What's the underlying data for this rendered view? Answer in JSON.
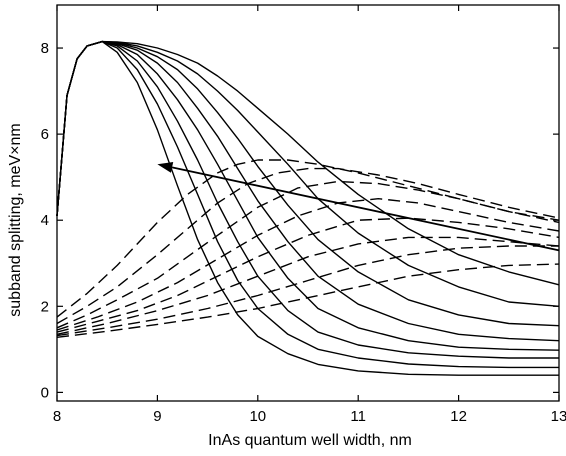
{
  "chart_data": {
    "type": "line",
    "title": "",
    "xlabel": "InAs quantum well width, nm",
    "ylabel": "subband splitting, meV×nm",
    "xlim": [
      8,
      13
    ],
    "ylim": [
      -0.2,
      9
    ],
    "xticks": [
      8,
      9,
      10,
      11,
      12,
      13
    ],
    "yticks": [
      0,
      2,
      4,
      6,
      8
    ],
    "xtick_labels": [
      "8",
      "9",
      "10",
      "11",
      "12",
      "13"
    ],
    "ytick_labels": [
      "0",
      "2",
      "4",
      "6",
      "8"
    ],
    "grid": false,
    "legend": "none",
    "series": [
      {
        "style": "solid",
        "x": [
          8.0,
          8.1,
          8.2,
          8.3,
          8.45,
          8.6,
          8.8,
          9.0,
          9.2,
          9.4,
          9.6,
          9.8,
          10.0,
          10.3,
          10.6,
          11.0,
          11.5,
          12.0,
          12.5,
          13.0
        ],
        "y": [
          4.1,
          6.9,
          7.75,
          8.05,
          8.15,
          7.9,
          7.2,
          6.1,
          4.8,
          3.55,
          2.55,
          1.8,
          1.3,
          0.9,
          0.65,
          0.5,
          0.42,
          0.4,
          0.4,
          0.4
        ]
      },
      {
        "style": "solid",
        "x": [
          8.0,
          8.1,
          8.2,
          8.3,
          8.45,
          8.6,
          8.8,
          9.0,
          9.2,
          9.4,
          9.6,
          9.8,
          10.0,
          10.3,
          10.6,
          11.0,
          11.5,
          12.0,
          12.5,
          13.0
        ],
        "y": [
          4.1,
          6.9,
          7.75,
          8.05,
          8.15,
          8.0,
          7.5,
          6.7,
          5.7,
          4.6,
          3.5,
          2.6,
          1.95,
          1.35,
          1.0,
          0.8,
          0.66,
          0.6,
          0.58,
          0.58
        ]
      },
      {
        "style": "solid",
        "x": [
          8.0,
          8.1,
          8.2,
          8.3,
          8.45,
          8.6,
          8.8,
          9.0,
          9.2,
          9.4,
          9.6,
          9.8,
          10.0,
          10.3,
          10.6,
          11.0,
          11.5,
          12.0,
          12.5,
          13.0
        ],
        "y": [
          4.1,
          6.9,
          7.75,
          8.05,
          8.15,
          8.05,
          7.7,
          7.1,
          6.3,
          5.4,
          4.4,
          3.5,
          2.7,
          1.9,
          1.4,
          1.1,
          0.92,
          0.84,
          0.8,
          0.8
        ]
      },
      {
        "style": "solid",
        "x": [
          8.0,
          8.1,
          8.2,
          8.3,
          8.45,
          8.6,
          8.8,
          9.0,
          9.2,
          9.4,
          9.6,
          9.8,
          10.0,
          10.3,
          10.6,
          11.0,
          11.5,
          12.0,
          12.5,
          13.0
        ],
        "y": [
          4.1,
          6.9,
          7.75,
          8.05,
          8.15,
          8.08,
          7.85,
          7.4,
          6.8,
          6.1,
          5.3,
          4.45,
          3.6,
          2.65,
          1.95,
          1.5,
          1.2,
          1.05,
          1.0,
          0.98
        ]
      },
      {
        "style": "solid",
        "x": [
          8.0,
          8.1,
          8.2,
          8.3,
          8.45,
          8.6,
          8.8,
          9.0,
          9.2,
          9.4,
          9.6,
          9.8,
          10.0,
          10.3,
          10.6,
          11.0,
          11.5,
          12.0,
          12.5,
          13.0
        ],
        "y": [
          4.1,
          6.9,
          7.75,
          8.05,
          8.15,
          8.1,
          7.95,
          7.65,
          7.2,
          6.6,
          5.95,
          5.2,
          4.45,
          3.5,
          2.7,
          2.05,
          1.6,
          1.35,
          1.25,
          1.2
        ]
      },
      {
        "style": "solid",
        "x": [
          8.0,
          8.1,
          8.2,
          8.3,
          8.45,
          8.6,
          8.8,
          9.0,
          9.2,
          9.4,
          9.6,
          9.8,
          10.0,
          10.3,
          10.6,
          11.0,
          11.5,
          12.0,
          12.5,
          13.0
        ],
        "y": [
          4.1,
          6.9,
          7.75,
          8.05,
          8.15,
          8.12,
          8.0,
          7.8,
          7.5,
          7.05,
          6.5,
          5.9,
          5.25,
          4.35,
          3.55,
          2.8,
          2.15,
          1.8,
          1.6,
          1.55
        ]
      },
      {
        "style": "solid",
        "x": [
          8.0,
          8.1,
          8.2,
          8.3,
          8.45,
          8.6,
          8.8,
          9.0,
          9.2,
          9.4,
          9.6,
          9.8,
          10.0,
          10.3,
          10.6,
          11.0,
          11.5,
          12.0,
          12.5,
          13.0
        ],
        "y": [
          4.1,
          6.9,
          7.75,
          8.05,
          8.15,
          8.13,
          8.05,
          7.9,
          7.7,
          7.4,
          7.0,
          6.55,
          6.05,
          5.3,
          4.5,
          3.7,
          2.95,
          2.45,
          2.1,
          2.0
        ]
      },
      {
        "style": "solid",
        "x": [
          8.0,
          8.1,
          8.2,
          8.3,
          8.45,
          8.6,
          8.8,
          9.0,
          9.2,
          9.4,
          9.6,
          9.8,
          10.0,
          10.3,
          10.6,
          11.0,
          11.5,
          12.0,
          12.5,
          13.0
        ],
        "y": [
          4.1,
          6.9,
          7.75,
          8.05,
          8.15,
          8.14,
          8.1,
          8.0,
          7.85,
          7.65,
          7.35,
          7.0,
          6.6,
          6.0,
          5.35,
          4.6,
          3.8,
          3.2,
          2.8,
          2.5
        ]
      },
      {
        "style": "dashed",
        "x": [
          8.0,
          8.3,
          8.6,
          9.0,
          9.3,
          9.6,
          9.8,
          10.0,
          10.3,
          10.6,
          11.0,
          11.5,
          12.0,
          12.5,
          13.0
        ],
        "y": [
          1.75,
          2.3,
          2.95,
          3.95,
          4.6,
          5.1,
          5.3,
          5.4,
          5.4,
          5.3,
          5.1,
          4.8,
          4.5,
          4.2,
          4.0
        ]
      },
      {
        "style": "dashed",
        "x": [
          8.0,
          8.3,
          8.6,
          9.0,
          9.3,
          9.6,
          9.9,
          10.2,
          10.5,
          10.8,
          11.2,
          11.6,
          12.0,
          12.5,
          13.0
        ],
        "y": [
          1.6,
          2.0,
          2.45,
          3.2,
          3.8,
          4.4,
          4.85,
          5.1,
          5.2,
          5.2,
          5.05,
          4.85,
          4.6,
          4.3,
          4.05
        ]
      },
      {
        "style": "dashed",
        "x": [
          8.0,
          8.3,
          8.6,
          9.0,
          9.3,
          9.6,
          10.0,
          10.4,
          10.8,
          11.2,
          11.6,
          12.0,
          12.5,
          13.0
        ],
        "y": [
          1.5,
          1.8,
          2.15,
          2.65,
          3.15,
          3.65,
          4.3,
          4.75,
          4.9,
          4.85,
          4.7,
          4.5,
          4.2,
          3.95
        ]
      },
      {
        "style": "dashed",
        "x": [
          8.0,
          8.4,
          8.8,
          9.2,
          9.6,
          10.0,
          10.4,
          10.8,
          11.2,
          11.6,
          12.0,
          12.5,
          13.0
        ],
        "y": [
          1.45,
          1.75,
          2.1,
          2.55,
          3.1,
          3.65,
          4.1,
          4.4,
          4.5,
          4.4,
          4.2,
          3.95,
          3.75
        ]
      },
      {
        "style": "dashed",
        "x": [
          8.0,
          8.4,
          8.8,
          9.2,
          9.6,
          10.0,
          10.5,
          11.0,
          11.5,
          12.0,
          12.5,
          13.0
        ],
        "y": [
          1.4,
          1.65,
          1.9,
          2.25,
          2.7,
          3.15,
          3.65,
          4.0,
          4.05,
          3.95,
          3.8,
          3.6
        ]
      },
      {
        "style": "dashed",
        "x": [
          8.0,
          8.5,
          9.0,
          9.5,
          10.0,
          10.5,
          11.0,
          11.5,
          12.0,
          12.5,
          13.0
        ],
        "y": [
          1.35,
          1.6,
          1.9,
          2.25,
          2.7,
          3.15,
          3.45,
          3.6,
          3.6,
          3.5,
          3.4
        ]
      },
      {
        "style": "dashed",
        "x": [
          8.0,
          8.5,
          9.0,
          9.5,
          10.0,
          10.5,
          11.0,
          11.5,
          12.0,
          12.5,
          13.0
        ],
        "y": [
          1.32,
          1.5,
          1.7,
          1.95,
          2.25,
          2.6,
          2.95,
          3.2,
          3.35,
          3.4,
          3.4
        ]
      },
      {
        "style": "dashed",
        "x": [
          8.0,
          8.5,
          9.0,
          9.5,
          10.0,
          10.5,
          11.0,
          11.5,
          12.0,
          12.5,
          13.0
        ],
        "y": [
          1.28,
          1.42,
          1.58,
          1.75,
          1.95,
          2.2,
          2.45,
          2.7,
          2.85,
          2.95,
          2.98
        ]
      }
    ],
    "annotations": [
      {
        "type": "arrow",
        "from": [
          13.0,
          3.3
        ],
        "to": [
          9.0,
          5.3
        ]
      }
    ]
  }
}
